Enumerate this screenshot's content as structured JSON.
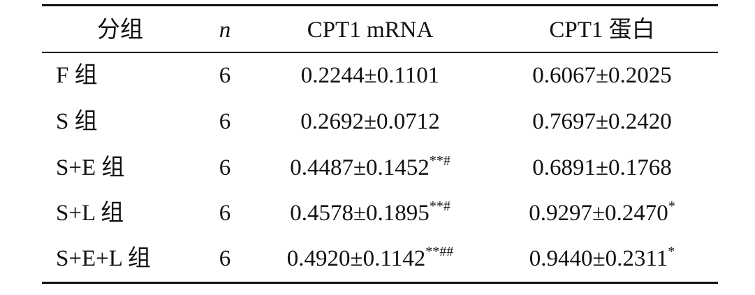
{
  "table": {
    "header": [
      "分组",
      "n",
      "CPT1 mRNA",
      "CPT1 蛋白"
    ],
    "rows": [
      [
        {
          "text": "F 组"
        },
        {
          "text": "6"
        },
        {
          "text": "0.2244±0.1101"
        },
        {
          "text": "0.6067±0.2025"
        }
      ],
      [
        {
          "text": "S 组"
        },
        {
          "text": "6"
        },
        {
          "text": "0.2692±0.0712"
        },
        {
          "text": "0.7697±0.2420"
        }
      ],
      [
        {
          "text": "S+E 组"
        },
        {
          "text": "6"
        },
        {
          "text": "0.4487±0.1452",
          "sup": "**#"
        },
        {
          "text": "0.6891±0.1768"
        }
      ],
      [
        {
          "text": "S+L 组"
        },
        {
          "text": "6"
        },
        {
          "text": "0.4578±0.1895",
          "sup": "**#"
        },
        {
          "text": "0.9297±0.2470",
          "sup": "*"
        }
      ],
      [
        {
          "text": "S+E+L 组"
        },
        {
          "text": "6"
        },
        {
          "text": "0.4920±0.1142",
          "sup": "**##"
        },
        {
          "text": "0.9440±0.2311",
          "sup": "*"
        }
      ]
    ]
  }
}
